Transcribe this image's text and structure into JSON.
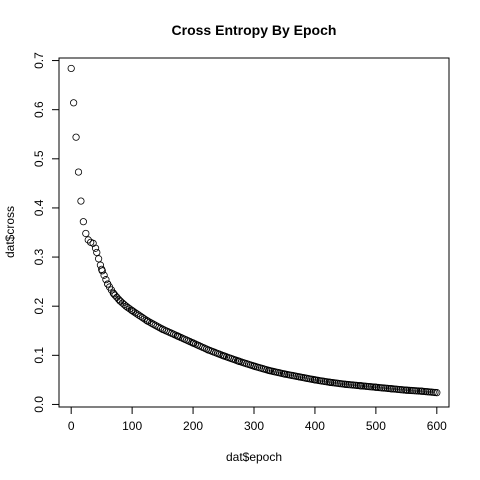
{
  "chart_data": {
    "type": "scatter",
    "title": "Cross Entropy By Epoch",
    "xlabel": "dat$epoch",
    "ylabel": "dat$cross",
    "xlim": [
      -20,
      620
    ],
    "ylim": [
      -0.0052,
      0.7052
    ],
    "xticks": [
      0,
      100,
      200,
      300,
      400,
      500,
      600
    ],
    "yticks": [
      0.0,
      0.1,
      0.2,
      0.3,
      0.4,
      0.5,
      0.6,
      0.7
    ],
    "grid": false,
    "legend": "none",
    "marker": "open-circle",
    "color": "#000000",
    "x": [
      0,
      4,
      8,
      12,
      16,
      20,
      24,
      28,
      32,
      36,
      40,
      50,
      60,
      70,
      80,
      90,
      100,
      125,
      150,
      175,
      200,
      225,
      250,
      275,
      300,
      325,
      350,
      375,
      400,
      425,
      450,
      475,
      500,
      525,
      550,
      575,
      600
    ],
    "y": [
      0.684,
      0.614,
      0.544,
      0.473,
      0.414,
      0.372,
      0.348,
      0.335,
      0.33,
      0.328,
      0.318,
      0.275,
      0.245,
      0.225,
      0.211,
      0.2,
      0.191,
      0.17,
      0.153,
      0.139,
      0.125,
      0.111,
      0.099,
      0.088,
      0.078,
      0.069,
      0.062,
      0.056,
      0.05,
      0.045,
      0.041,
      0.038,
      0.035,
      0.032,
      0.029,
      0.027,
      0.024
    ]
  }
}
